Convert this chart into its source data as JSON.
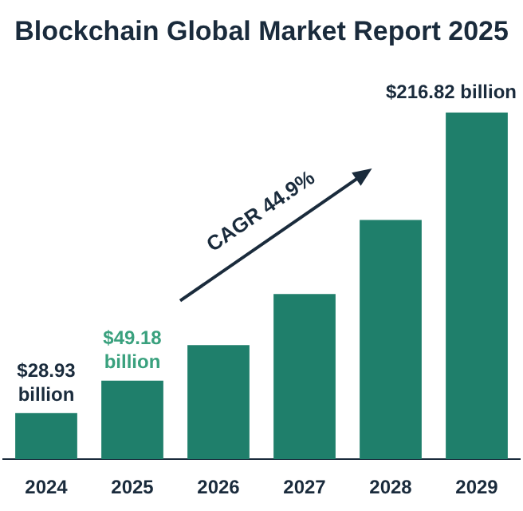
{
  "chart_data": {
    "type": "bar",
    "title": "Blockchain Global Market Report 2025",
    "categories": [
      "2024",
      "2025",
      "2026",
      "2027",
      "2028",
      "2029"
    ],
    "values": [
      28.93,
      49.18,
      71.3,
      103.3,
      149.6,
      216.82
    ],
    "value_labels": [
      "$28.93 billion",
      "$49.18 billion",
      null,
      null,
      null,
      "$216.82 billion"
    ],
    "color": "#1f7f6b",
    "annotations": [
      "CAGR 44.9%"
    ]
  }
}
